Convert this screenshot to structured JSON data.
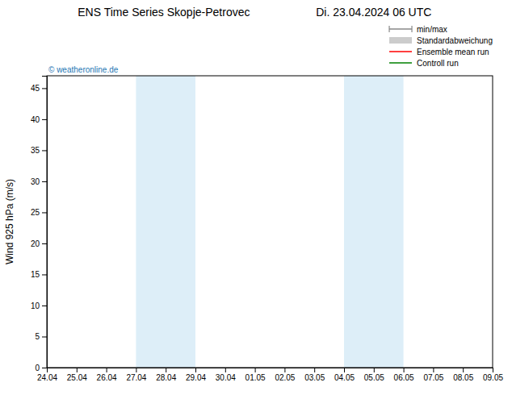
{
  "chart_data": {
    "type": "line",
    "title": "ENS Time Series Skopje-Petrovec",
    "subtitle": "Di. 23.04.2024 06 UTC",
    "ylabel": "Wind 925 hPa (m/s)",
    "annotations": [
      "© weatheronline.de"
    ],
    "categories": [
      "24.04",
      "25.04",
      "26.04",
      "27.04",
      "28.04",
      "29.04",
      "30.04",
      "01.05",
      "02.05",
      "03.05",
      "04.05",
      "05.05",
      "06.05",
      "07.05",
      "08.05",
      "09.05"
    ],
    "ylim": [
      0,
      47
    ],
    "yticks": [
      0,
      5,
      10,
      15,
      20,
      25,
      30,
      35,
      40,
      45
    ],
    "shaded_bands": [
      {
        "x0": "27.04",
        "x1": "29.04",
        "color": "#ddeef8"
      },
      {
        "x0": "04.05",
        "x1": "06.05",
        "color": "#ddeef8"
      }
    ],
    "series": [
      {
        "name": "min/max",
        "color": "#888888",
        "type": "range",
        "values": [
          null,
          null,
          null,
          null,
          null,
          null,
          null,
          null,
          null,
          null,
          null,
          null,
          null,
          null,
          null,
          null
        ]
      },
      {
        "name": "Standardabweichung",
        "color": "#cccccc",
        "type": "area",
        "values": [
          null,
          null,
          null,
          null,
          null,
          null,
          null,
          null,
          null,
          null,
          null,
          null,
          null,
          null,
          null,
          null
        ]
      },
      {
        "name": "Ensemble mean run",
        "color": "#ff0000",
        "type": "line",
        "values": [
          null,
          null,
          null,
          null,
          null,
          null,
          null,
          null,
          null,
          null,
          null,
          null,
          null,
          null,
          null,
          null
        ]
      },
      {
        "name": "Controll run",
        "color": "#008000",
        "type": "line",
        "values": [
          null,
          null,
          null,
          null,
          null,
          null,
          null,
          null,
          null,
          null,
          null,
          null,
          null,
          null,
          null,
          null
        ]
      }
    ],
    "legend": "upper right",
    "grid": false
  }
}
